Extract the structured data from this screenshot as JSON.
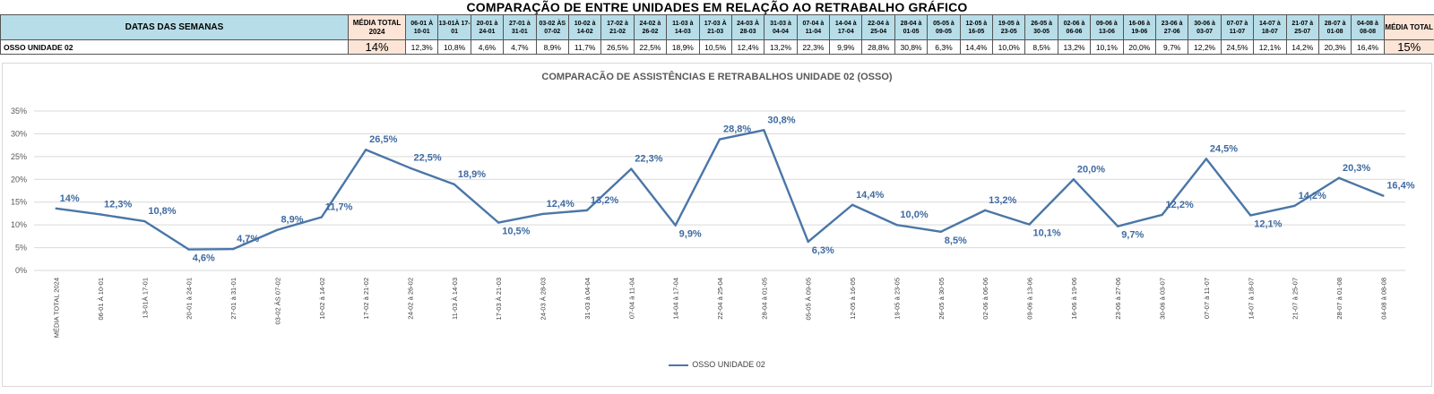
{
  "sheet_title": "COMPARAÇÃO DE ENTRE UNIDADES EM RELAÇÃO AO RETRABALHO GRÁFICO",
  "table": {
    "header_label": "DATAS DAS SEMANAS",
    "row_label": "OSSO UNIDADE 02",
    "avg_start_header": "MÉDIA TOTAL 2024",
    "avg_start_value": "14%",
    "avg_end_header": "MÉDIA TOTAL",
    "avg_end_value": "15%",
    "weeks": [
      {
        "h": "06-01 À 10-01",
        "v": "12,3%"
      },
      {
        "h": "13-01À 17-01",
        "v": "10,8%"
      },
      {
        "h": "20-01 à 24-01",
        "v": "4,6%"
      },
      {
        "h": "27-01 à 31-01",
        "v": "4,7%"
      },
      {
        "h": "03-02 ÀS 07-02",
        "v": "8,9%"
      },
      {
        "h": "10-02 à 14-02",
        "v": "11,7%"
      },
      {
        "h": "17-02 à 21-02",
        "v": "26,5%"
      },
      {
        "h": "24-02 à 26-02",
        "v": "22,5%"
      },
      {
        "h": "11-03 à 14-03",
        "v": "18,9%"
      },
      {
        "h": "17-03 À 21-03",
        "v": "10,5%"
      },
      {
        "h": "24-03 À 28-03",
        "v": "12,4%"
      },
      {
        "h": "31-03 à 04-04",
        "v": "13,2%"
      },
      {
        "h": "07-04 à 11-04",
        "v": "22,3%"
      },
      {
        "h": "14-04 à 17-04",
        "v": "9,9%"
      },
      {
        "h": "22-04 à 25-04",
        "v": "28,8%"
      },
      {
        "h": "28-04 à 01-05",
        "v": "30,8%"
      },
      {
        "h": "05-05 à 09-05",
        "v": "6,3%"
      },
      {
        "h": "12-05 à 16-05",
        "v": "14,4%"
      },
      {
        "h": "19-05 à 23-05",
        "v": "10,0%"
      },
      {
        "h": "26-05 à 30-05",
        "v": "8,5%"
      },
      {
        "h": "02-06 à 06-06",
        "v": "13,2%"
      },
      {
        "h": "09-06 à 13-06",
        "v": "10,1%"
      },
      {
        "h": "16-06 à 19-06",
        "v": "20,0%"
      },
      {
        "h": "23-06 à 27-06",
        "v": "9,7%"
      },
      {
        "h": "30-06 à 03-07",
        "v": "12,2%"
      },
      {
        "h": "07-07 à 11-07",
        "v": "24,5%"
      },
      {
        "h": "14-07 à 18-07",
        "v": "12,1%"
      },
      {
        "h": "21-07 à 25-07",
        "v": "14,2%"
      },
      {
        "h": "28-07 à 01-08",
        "v": "20,3%"
      },
      {
        "h": "04-08 à 08-08",
        "v": "16,4%"
      }
    ]
  },
  "chart_data": {
    "type": "line",
    "title": "COMPARACÃO DE ASSISTÊNCIAS E RETRABALHOS UNIDADE 02  (OSSO)",
    "xlabel": "",
    "ylabel": "",
    "ylim": [
      0,
      35
    ],
    "yticks": [
      "0%",
      "5%",
      "10%",
      "15%",
      "20%",
      "25%",
      "30%",
      "35%"
    ],
    "grid": true,
    "legend_position": "bottom",
    "line_color": "#4a76a8",
    "categories": [
      "MÉDIA TOTAL 2024",
      "06-01 À 10-01",
      "13-01À 17-01",
      "20-01 à 24-01",
      "27-01 à 31-01",
      "03-02 ÀS 07-02",
      "10-02 à 14-02",
      "17-02 à 21-02",
      "24-02 à 26-02",
      "11-03  À 14-03",
      "17-03 À 21-03",
      "24-03 À 28-03",
      "31-03 à 04-04",
      "07-04 à 11-04",
      "14-04 à 17-04",
      "22-04 à 25-04",
      "28-04 à 01-05",
      "05-05 À 09-05",
      "12-05 à 16-05",
      "19-05 à 23-05",
      "26-05 à 30-05",
      "02-06 à 06-06",
      "09-06 à 13-06",
      "16-06 à 19-06",
      "23-06 à 27-06",
      "30-06 à 03-07",
      "07-07 à 11-07",
      "14-07 à 18-07",
      "21-07 à 25-07",
      "28-07 à 01-08",
      "04-08 à 08-08"
    ],
    "series": [
      {
        "name": "OSSO UNIDADE 02",
        "values": [
          13.6,
          12.3,
          10.8,
          4.6,
          4.7,
          8.9,
          11.7,
          26.5,
          22.5,
          18.9,
          10.5,
          12.4,
          13.2,
          22.3,
          9.9,
          28.8,
          30.8,
          6.3,
          14.4,
          10.0,
          8.5,
          13.2,
          10.1,
          20.0,
          9.7,
          12.2,
          24.5,
          12.1,
          14.2,
          20.3,
          16.4
        ],
        "labels": [
          "14%",
          "12,3%",
          "10,8%",
          "4,6%",
          "4,7%",
          "8,9%",
          "11,7%",
          "26,5%",
          "22,5%",
          "18,9%",
          "10,5%",
          "12,4%",
          "13,2%",
          "22,3%",
          "9,9%",
          "28,8%",
          "30,8%",
          "6,3%",
          "14,4%",
          "10,0%",
          "8,5%",
          "13,2%",
          "10,1%",
          "20,0%",
          "9,7%",
          "12,2%",
          "24,5%",
          "12,1%",
          "14,2%",
          "20,3%",
          "16,4%"
        ]
      }
    ]
  }
}
